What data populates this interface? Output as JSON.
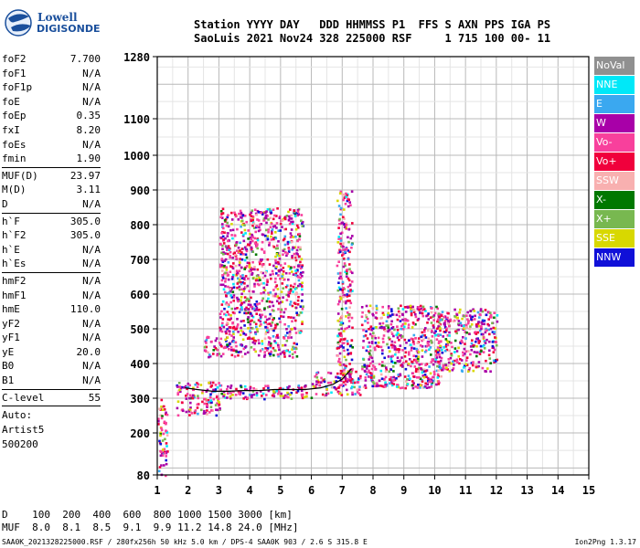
{
  "logo": {
    "line1": "Lowell",
    "line2": "DIGISONDE"
  },
  "header": {
    "line1": "Station YYYY DAY   DDD HHMMSS P1  FFS S AXN PPS IGA PS",
    "line2": "SaoLuis 2021 Nov24 328 225000 RSF     1 715 100 00- 11"
  },
  "params_group1": [
    {
      "label": "foF2",
      "value": "7.700"
    },
    {
      "label": "foF1",
      "value": "N/A"
    },
    {
      "label": "foF1p",
      "value": "N/A"
    },
    {
      "label": "foE",
      "value": "N/A"
    },
    {
      "label": "foEp",
      "value": "0.35"
    },
    {
      "label": "fxI",
      "value": "8.20"
    },
    {
      "label": "foEs",
      "value": "N/A"
    },
    {
      "label": "fmin",
      "value": "1.90"
    }
  ],
  "params_group2": [
    {
      "label": "MUF(D)",
      "value": "23.97"
    },
    {
      "label": "M(D)",
      "value": "3.11"
    },
    {
      "label": "D",
      "value": "N/A"
    }
  ],
  "params_group3": [
    {
      "label": "h`F",
      "value": "305.0"
    },
    {
      "label": "h`F2",
      "value": "305.0"
    },
    {
      "label": "h`E",
      "value": "N/A"
    },
    {
      "label": "h`Es",
      "value": "N/A"
    }
  ],
  "params_group4": [
    {
      "label": "hmF2",
      "value": "N/A"
    },
    {
      "label": "hmF1",
      "value": "N/A"
    },
    {
      "label": "hmE",
      "value": "110.0"
    },
    {
      "label": "yF2",
      "value": "N/A"
    },
    {
      "label": "yF1",
      "value": "N/A"
    },
    {
      "label": "yE",
      "value": "20.0"
    },
    {
      "label": "B0",
      "value": "N/A"
    },
    {
      "label": "B1",
      "value": "N/A"
    }
  ],
  "params_group5": [
    {
      "label": "C-level",
      "value": "55"
    }
  ],
  "auto": {
    "line1": "Auto:",
    "line2": "Artist5",
    "line3": "500200"
  },
  "legend": [
    {
      "label": "NoVal",
      "color": "#909090"
    },
    {
      "label": "NNE",
      "color": "#00e8f8"
    },
    {
      "label": "E",
      "color": "#3aa8f0"
    },
    {
      "label": "W",
      "color": "#a800a8"
    },
    {
      "label": "Vo-",
      "color": "#f8409c"
    },
    {
      "label": "Vo+",
      "color": "#f0003c"
    },
    {
      "label": "SSW",
      "color": "#f8b0b0"
    },
    {
      "label": "X-",
      "color": "#007800"
    },
    {
      "label": "X+",
      "color": "#78b850"
    },
    {
      "label": "SSE",
      "color": "#d8d800"
    },
    {
      "label": "NNW",
      "color": "#1010d8"
    }
  ],
  "bottom": {
    "line1": "D    100  200  400  600  800 1000 1500 3000 [km]",
    "line2": "MUF  8.0  8.1  8.5  9.1  9.9 11.2 14.8 24.0 [MHz]"
  },
  "footer": {
    "left": "SAA0K_2021328225000.RSF / 280fx256h 50 kHz 5.0 km / DPS-4 SAA0K 903 / 2.6 S 315.8 E",
    "right": "Ion2Png 1.3.17"
  },
  "chart_data": {
    "type": "scatter",
    "title": "",
    "xlabel": "",
    "ylabel": "",
    "xlim": [
      1,
      15
    ],
    "ylim": [
      80,
      1280
    ],
    "x_ticks": [
      "1",
      "2",
      "3",
      "4",
      "5",
      "6",
      "7",
      "8",
      "9",
      "10",
      "11",
      "12",
      "13",
      "14",
      "15"
    ],
    "y_ticks": [
      "80",
      "200",
      "300",
      "400",
      "500",
      "600",
      "700",
      "800",
      "900",
      "1000",
      "1100",
      "1280"
    ],
    "grid": true,
    "trace_series": {
      "name": "",
      "x": [
        1.9,
        2.3,
        2.8,
        3.3,
        3.8,
        4.3,
        4.8,
        5.3,
        5.8,
        6.3,
        6.7,
        7.0,
        7.3
      ],
      "y": [
        330,
        325,
        320,
        320,
        322,
        322,
        325,
        325,
        325,
        330,
        340,
        355,
        385
      ]
    },
    "echo_clusters": [
      {
        "x": [
          1.0,
          1.3
        ],
        "y": [
          80,
          300
        ]
      },
      {
        "x": [
          1.6,
          3.0
        ],
        "y": [
          250,
          350
        ]
      },
      {
        "x": [
          3.0,
          6.0
        ],
        "y": [
          300,
          340
        ]
      },
      {
        "x": [
          6.0,
          7.6
        ],
        "y": [
          310,
          380
        ]
      },
      {
        "x": [
          7.6,
          10.2
        ],
        "y": [
          330,
          570
        ]
      },
      {
        "x": [
          10.0,
          12.0
        ],
        "y": [
          380,
          560
        ]
      },
      {
        "x": [
          2.5,
          5.5
        ],
        "y": [
          420,
          480
        ]
      },
      {
        "x": [
          3.0,
          5.7
        ],
        "y": [
          480,
          850
        ]
      },
      {
        "x": [
          6.8,
          7.3
        ],
        "y": [
          350,
          900
        ]
      }
    ]
  }
}
